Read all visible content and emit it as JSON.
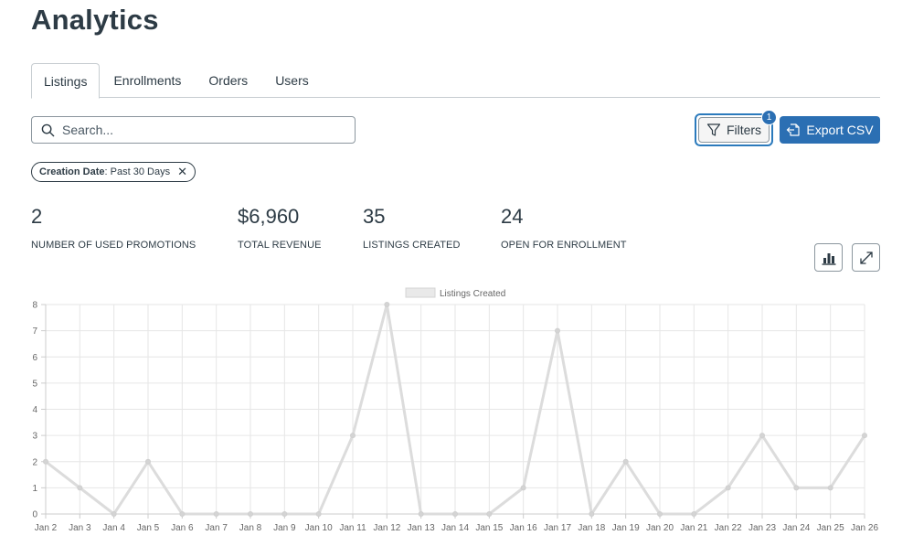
{
  "page": {
    "title": "Analytics"
  },
  "tabs": [
    {
      "label": "Listings",
      "active": true
    },
    {
      "label": "Enrollments",
      "active": false
    },
    {
      "label": "Orders",
      "active": false
    },
    {
      "label": "Users",
      "active": false
    }
  ],
  "search": {
    "placeholder": "Search...",
    "value": ""
  },
  "toolbar": {
    "filters_label": "Filters",
    "filters_count": "1",
    "export_label": "Export CSV"
  },
  "chip": {
    "key": "Creation Date",
    "value": ": Past 30 Days",
    "remove": "✕"
  },
  "stats": [
    {
      "value": "2",
      "label": "NUMBER OF USED PROMOTIONS"
    },
    {
      "value": "$6,960",
      "label": "TOTAL REVENUE"
    },
    {
      "value": "35",
      "label": "LISTINGS CREATED"
    },
    {
      "value": "24",
      "label": "OPEN FOR ENROLLMENT"
    }
  ],
  "colors": {
    "accent": "#2b6fb3",
    "text": "#2d3b45",
    "line": "#dcdcdc"
  },
  "chart_data": {
    "type": "line",
    "title": "",
    "xlabel": "",
    "ylabel": "",
    "categories": [
      "Jan 2",
      "Jan 3",
      "Jan 4",
      "Jan 5",
      "Jan 6",
      "Jan 7",
      "Jan 8",
      "Jan 9",
      "Jan 10",
      "Jan 11",
      "Jan 12",
      "Jan 13",
      "Jan 14",
      "Jan 15",
      "Jan 16",
      "Jan 17",
      "Jan 18",
      "Jan 19",
      "Jan 20",
      "Jan 21",
      "Jan 22",
      "Jan 23",
      "Jan 24",
      "Jan 25",
      "Jan 26"
    ],
    "series": [
      {
        "name": "Listings Created",
        "values": [
          2,
          1,
          0,
          2,
          0,
          0,
          0,
          0,
          0,
          3,
          8,
          0,
          0,
          0,
          1,
          7,
          0,
          2,
          0,
          0,
          1,
          3,
          1,
          1,
          3
        ]
      }
    ],
    "ylim": [
      0,
      8
    ],
    "yticks": [
      "0",
      "1",
      "2",
      "3",
      "4",
      "5",
      "6",
      "7",
      "8"
    ],
    "grid": true,
    "legend": "top-center"
  }
}
